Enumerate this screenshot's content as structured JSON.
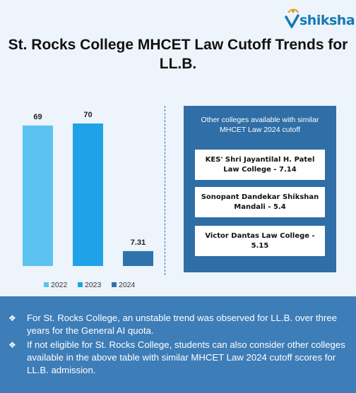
{
  "logo": {
    "text": "shiksha",
    "icon": "shiksha-logo-icon"
  },
  "title": "St. Rocks College MHCET Law Cutoff Trends for LL.B.",
  "chart_data": {
    "type": "bar",
    "title": "St. Rocks College MHCET Law Cutoff Trends for LL.B.",
    "categories": [
      "2022",
      "2023",
      "2024"
    ],
    "values": [
      69,
      70,
      7.31
    ],
    "data_labels": [
      "69",
      "70",
      "7.31"
    ],
    "colors": [
      "#5bc2ef",
      "#1ea3e8",
      "#2e73ac"
    ],
    "legend": [
      "2022",
      "2023",
      "2024"
    ],
    "legend_position": "bottom",
    "grid": false,
    "ylim": [
      0,
      70
    ]
  },
  "panel": {
    "title": "Other colleges available with similar MHCET Law 2024 cutoff",
    "colleges": [
      "KES' Shri Jayantilal H. Patel Law College - 7.14",
      "Sonopant Dandekar Shikshan Mandali - 5.4",
      "Victor Dantas Law College - 5.15"
    ]
  },
  "footer": {
    "bullets": [
      "For St. Rocks College, an unstable trend was observed for LL.B. over three years for the General AI quota.",
      "If not eligible for St. Rocks College, students can also consider other colleges available in the above table with similar MHCET Law 2024 cutoff scores for LL.B. admission."
    ],
    "bullet_symbol": "❖"
  }
}
